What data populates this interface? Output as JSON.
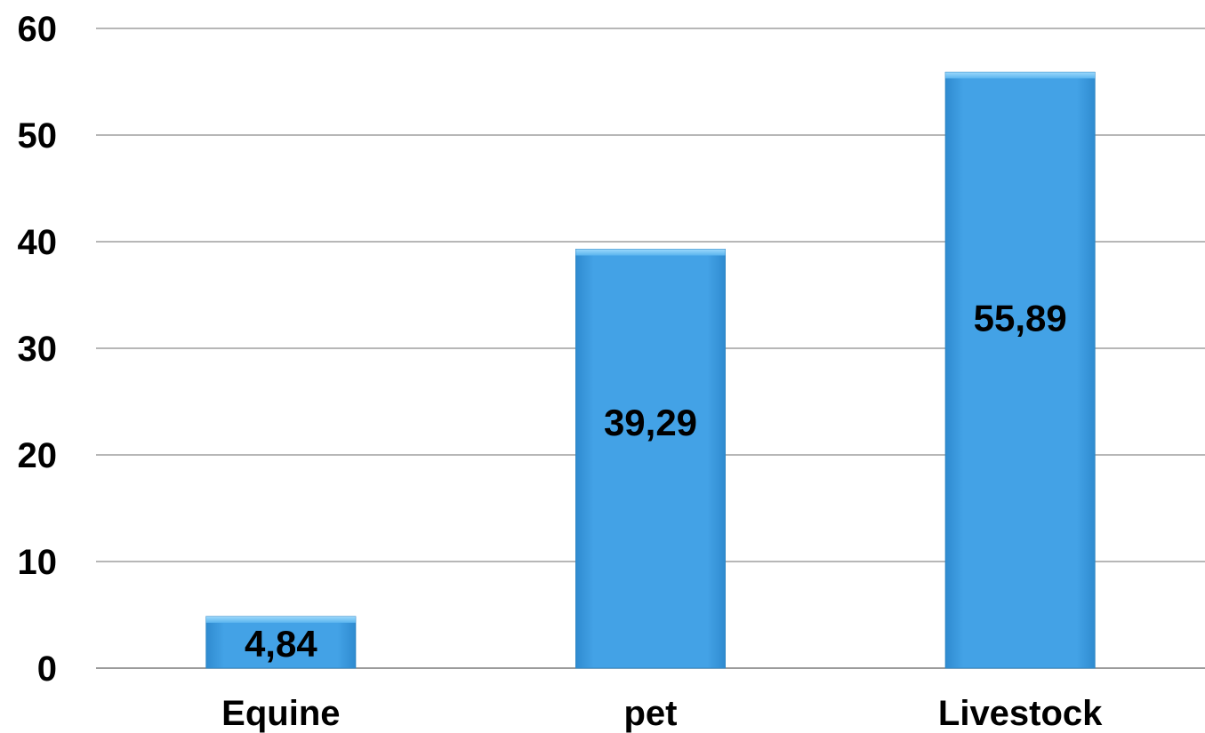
{
  "chart_data": {
    "type": "bar",
    "title": "",
    "xlabel": "",
    "ylabel": "",
    "categories": [
      "Equine",
      "pet",
      "Livestock"
    ],
    "values": [
      4.84,
      39.29,
      55.89
    ],
    "data_labels": [
      "4,84",
      "39,29",
      "55,89"
    ],
    "ylim": [
      0,
      60
    ],
    "yticks": [
      0,
      10,
      20,
      30,
      40,
      50,
      60
    ],
    "ytick_labels": [
      "0",
      "10",
      "20",
      "30",
      "40",
      "50",
      "60"
    ],
    "grid": true,
    "legend": "none",
    "colors": {
      "bar": "#43a2e6",
      "bar_top": "#7ccaf8",
      "bar_edge": "#2f86c4"
    }
  }
}
